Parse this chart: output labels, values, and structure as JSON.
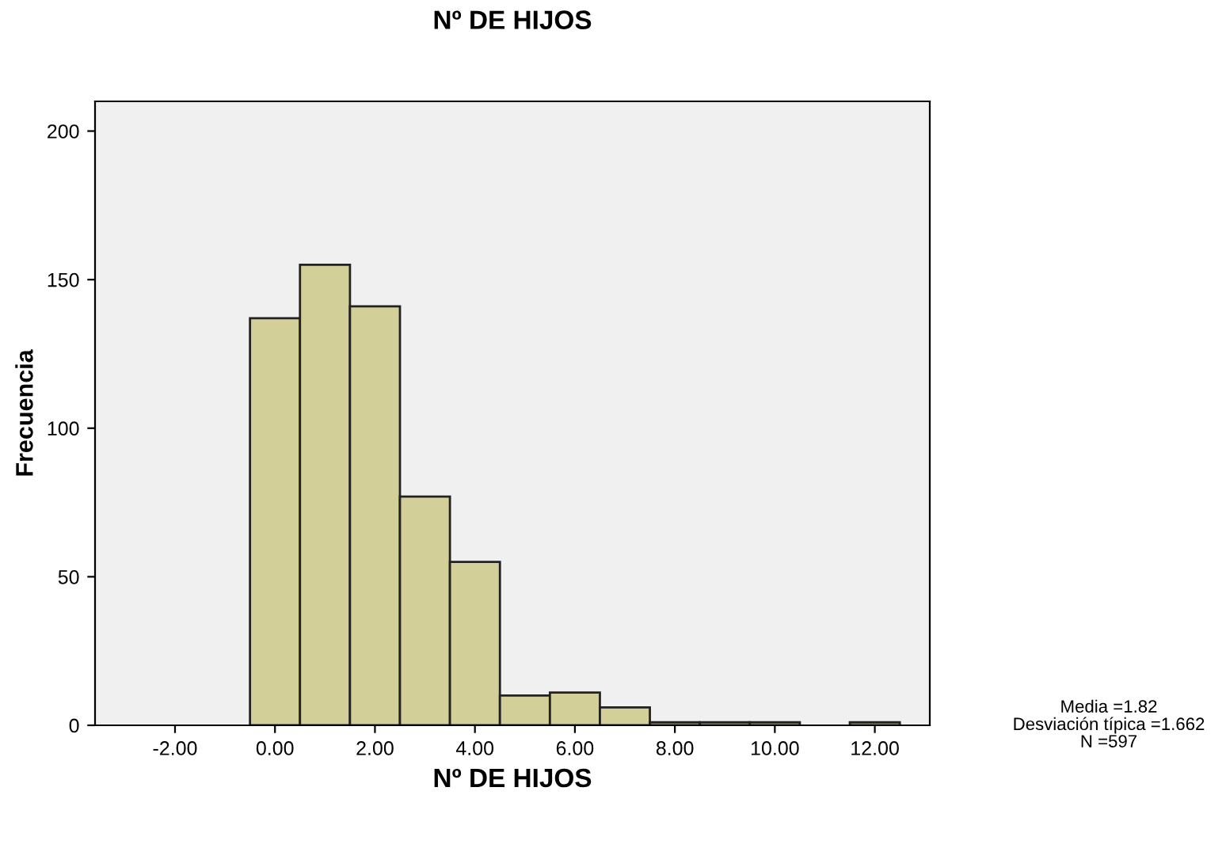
{
  "chart_data": {
    "type": "histogram",
    "title": "Nº DE HIJOS",
    "xlabel": "Nº DE HIJOS",
    "ylabel": "Frecuencia",
    "bins": [
      -0.5,
      0.5,
      1.5,
      2.5,
      3.5,
      4.5,
      5.5,
      6.5,
      7.5,
      8.5,
      9.5,
      10.5,
      11.5,
      12.5
    ],
    "values": [
      137,
      155,
      141,
      77,
      55,
      10,
      11,
      6,
      1,
      1,
      1,
      0,
      1
    ],
    "color": "#d3cf98",
    "xlim": [
      -3.6,
      13.1
    ],
    "xticks": [
      {
        "value": -2,
        "label": "-2.00"
      },
      {
        "value": 0,
        "label": "0.00"
      },
      {
        "value": 2,
        "label": "2.00"
      },
      {
        "value": 4,
        "label": "4.00"
      },
      {
        "value": 6,
        "label": "6.00"
      },
      {
        "value": 8,
        "label": "8.00"
      },
      {
        "value": 10,
        "label": "10.00"
      },
      {
        "value": 12,
        "label": "12.00"
      }
    ],
    "ylim": [
      0,
      210
    ],
    "yticks": [
      0,
      50,
      100,
      150,
      200
    ],
    "grid": false,
    "annotations": [
      "Media =1.82",
      "Desviación típica =1.662",
      "N =597"
    ]
  }
}
